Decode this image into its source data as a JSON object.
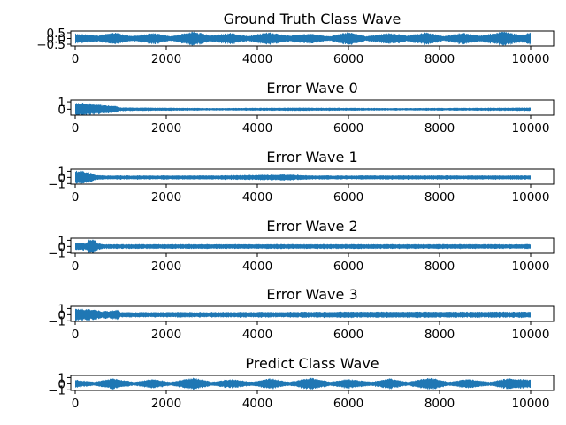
{
  "chart_data": [
    {
      "type": "line",
      "title": "Ground Truth Class Wave",
      "series_color": "#1f77b4",
      "xlim": [
        0,
        10000
      ],
      "ylim": [
        -0.65,
        0.65
      ],
      "x_ticks": [
        0,
        2000,
        4000,
        6000,
        8000,
        10000
      ],
      "x_tick_labels": [
        "0",
        "2000",
        "4000",
        "6000",
        "8000",
        "10000"
      ],
      "y_ticks": [
        0.5,
        0.0,
        -0.5
      ],
      "y_tick_labels": [
        "0.5",
        "0.0",
        "−0.5"
      ],
      "envelope_x": [
        0,
        500,
        800,
        1250,
        1700,
        2100,
        2600,
        3000,
        3400,
        3800,
        4200,
        4700,
        5100,
        5600,
        6000,
        6400,
        6900,
        7300,
        7700,
        8100,
        8500,
        8900,
        9400,
        9800,
        10000
      ],
      "envelope_amp": [
        0.4,
        0.25,
        0.5,
        0.2,
        0.45,
        0.2,
        0.55,
        0.25,
        0.45,
        0.2,
        0.5,
        0.25,
        0.4,
        0.2,
        0.5,
        0.2,
        0.45,
        0.25,
        0.5,
        0.2,
        0.45,
        0.25,
        0.55,
        0.3,
        0.5
      ]
    },
    {
      "type": "line",
      "title": "Error Wave 0",
      "series_color": "#1f77b4",
      "xlim": [
        0,
        10000
      ],
      "ylim": [
        -0.8,
        1.25
      ],
      "x_ticks": [
        0,
        2000,
        4000,
        6000,
        8000,
        10000
      ],
      "x_tick_labels": [
        "0",
        "2000",
        "4000",
        "6000",
        "8000",
        "10000"
      ],
      "y_ticks": [
        1,
        0
      ],
      "y_tick_labels": [
        "1",
        "0"
      ],
      "envelope_x": [
        0,
        200,
        500,
        900,
        1000,
        3000,
        5000,
        7000,
        10000
      ],
      "envelope_amp": [
        0.8,
        0.8,
        0.6,
        0.4,
        0.22,
        0.15,
        0.2,
        0.15,
        0.2
      ]
    },
    {
      "type": "line",
      "title": "Error Wave 1",
      "series_color": "#1f77b4",
      "xlim": [
        0,
        10000
      ],
      "ylim": [
        -1.1,
        1.35
      ],
      "x_ticks": [
        0,
        2000,
        4000,
        6000,
        8000,
        10000
      ],
      "x_tick_labels": [
        "0",
        "2000",
        "4000",
        "6000",
        "8000",
        "10000"
      ],
      "y_ticks": [
        1,
        0,
        -1
      ],
      "y_tick_labels": [
        "1",
        "0",
        "−1"
      ],
      "envelope_x": [
        0,
        150,
        350,
        450,
        700,
        3000,
        4700,
        5200,
        7000,
        10000
      ],
      "envelope_amp": [
        1.0,
        1.0,
        0.7,
        0.4,
        0.3,
        0.3,
        0.45,
        0.3,
        0.3,
        0.3
      ]
    },
    {
      "type": "line",
      "title": "Error Wave 2",
      "series_color": "#1f77b4",
      "xlim": [
        0,
        10000
      ],
      "ylim": [
        -1.1,
        1.35
      ],
      "x_ticks": [
        0,
        2000,
        4000,
        6000,
        8000,
        10000
      ],
      "x_tick_labels": [
        "0",
        "2000",
        "4000",
        "6000",
        "8000",
        "10000"
      ],
      "y_ticks": [
        1,
        0,
        -1
      ],
      "y_tick_labels": [
        "1",
        "0",
        "−1"
      ],
      "envelope_x": [
        0,
        250,
        300,
        450,
        500,
        600,
        3000,
        6000,
        10000
      ],
      "envelope_amp": [
        0.6,
        0.5,
        1.0,
        1.0,
        0.5,
        0.35,
        0.35,
        0.35,
        0.35
      ]
    },
    {
      "type": "line",
      "title": "Error Wave 3",
      "series_color": "#1f77b4",
      "xlim": [
        0,
        10000
      ],
      "ylim": [
        -1.1,
        1.35
      ],
      "x_ticks": [
        0,
        2000,
        4000,
        6000,
        8000,
        10000
      ],
      "x_tick_labels": [
        "0",
        "2000",
        "4000",
        "6000",
        "8000",
        "10000"
      ],
      "y_ticks": [
        1,
        0,
        -1
      ],
      "y_tick_labels": [
        "1",
        "0",
        "−1"
      ],
      "envelope_x": [
        0,
        100,
        400,
        600,
        850,
        950,
        1000,
        3000,
        6000,
        10000
      ],
      "envelope_amp": [
        1.0,
        0.9,
        0.8,
        0.5,
        0.7,
        0.7,
        0.4,
        0.4,
        0.45,
        0.45
      ]
    },
    {
      "type": "line",
      "title": "Predict Class Wave",
      "series_color": "#1f77b4",
      "xlim": [
        0,
        10000
      ],
      "ylim": [
        -1.1,
        1.35
      ],
      "x_ticks": [
        0,
        2000,
        4000,
        6000,
        8000,
        10000
      ],
      "x_tick_labels": [
        "0",
        "2000",
        "4000",
        "6000",
        "8000",
        "10000"
      ],
      "y_ticks": [
        1,
        0,
        -1
      ],
      "y_tick_labels": [
        "1",
        "0",
        "−1"
      ],
      "envelope_x": [
        0,
        400,
        800,
        1300,
        1700,
        2100,
        2600,
        3000,
        3400,
        3900,
        4300,
        4700,
        5200,
        5600,
        6000,
        6500,
        6900,
        7300,
        7800,
        8200,
        8600,
        9100,
        9500,
        10000
      ],
      "envelope_amp": [
        0.6,
        0.3,
        0.8,
        0.3,
        0.7,
        0.3,
        0.9,
        0.3,
        0.7,
        0.3,
        0.8,
        0.3,
        0.9,
        0.3,
        0.7,
        0.3,
        0.8,
        0.3,
        0.9,
        0.3,
        0.7,
        0.3,
        0.8,
        0.6
      ]
    }
  ]
}
